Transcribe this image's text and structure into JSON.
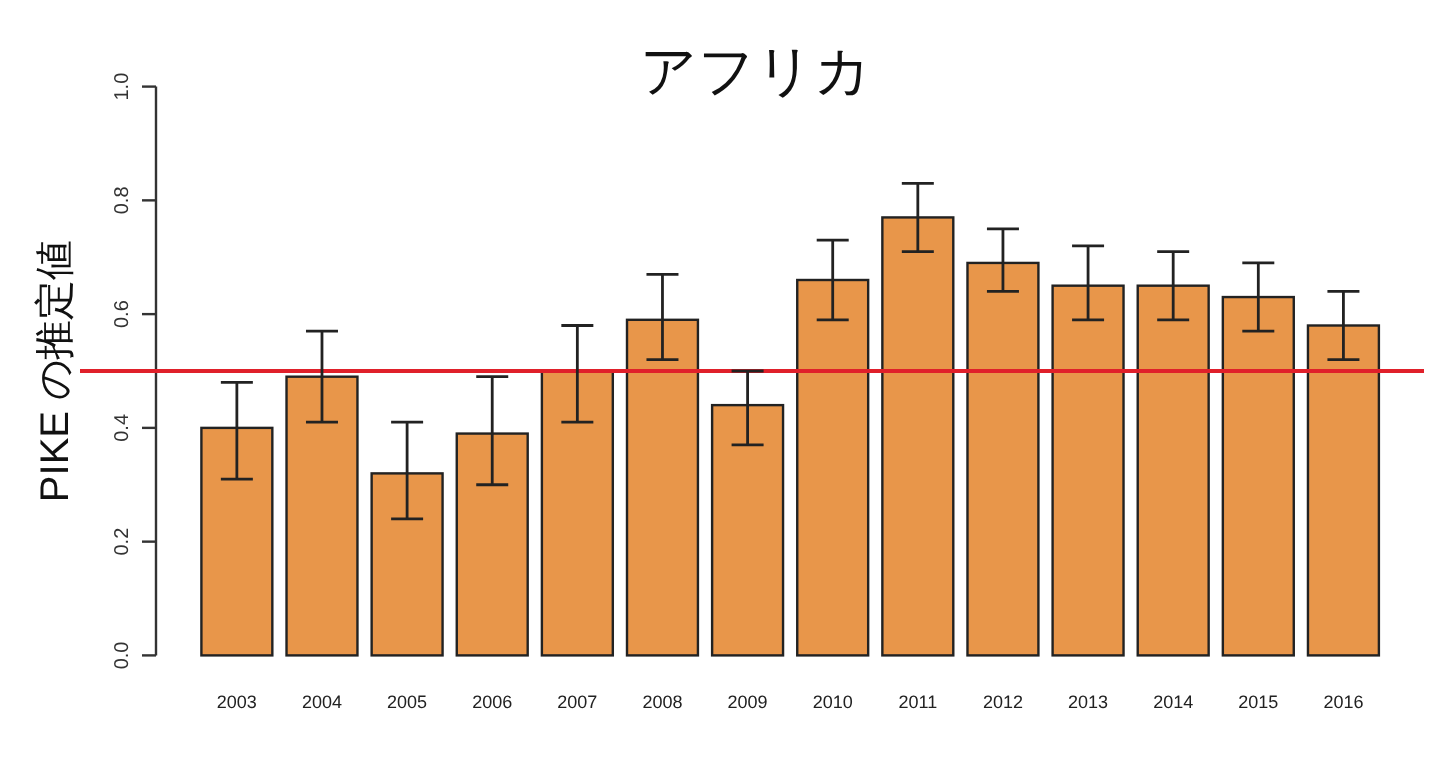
{
  "chart_data": {
    "type": "bar",
    "title": "アフリカ",
    "ylabel": "PIKE の推定値",
    "categories": [
      "2003",
      "2004",
      "2005",
      "2006",
      "2007",
      "2008",
      "2009",
      "2010",
      "2011",
      "2012",
      "2013",
      "2014",
      "2015",
      "2016"
    ],
    "values": [
      0.4,
      0.49,
      0.32,
      0.39,
      0.5,
      0.59,
      0.44,
      0.66,
      0.77,
      0.69,
      0.65,
      0.65,
      0.63,
      0.58
    ],
    "errors": [
      [
        0.31,
        0.48
      ],
      [
        0.41,
        0.57
      ],
      [
        0.24,
        0.41
      ],
      [
        0.3,
        0.49
      ],
      [
        0.41,
        0.58
      ],
      [
        0.52,
        0.67
      ],
      [
        0.37,
        0.5
      ],
      [
        0.59,
        0.73
      ],
      [
        0.71,
        0.83
      ],
      [
        0.64,
        0.75
      ],
      [
        0.59,
        0.72
      ],
      [
        0.59,
        0.71
      ],
      [
        0.57,
        0.69
      ],
      [
        0.52,
        0.64
      ]
    ],
    "color": "#e8964a",
    "ylim": [
      0,
      1
    ],
    "yticks": [
      {
        "value": 0,
        "label": "0.0"
      },
      {
        "value": 0.2,
        "label": "0.2"
      },
      {
        "value": 0.4,
        "label": "0.4"
      },
      {
        "value": 0.6,
        "label": "0.6"
      },
      {
        "value": 0.8,
        "label": "0.8"
      },
      {
        "value": 1,
        "label": "1.0"
      }
    ],
    "ref_lines": [
      {
        "axis": "y",
        "value": 0.5,
        "color": "#e0202a"
      }
    ],
    "grid": false
  }
}
